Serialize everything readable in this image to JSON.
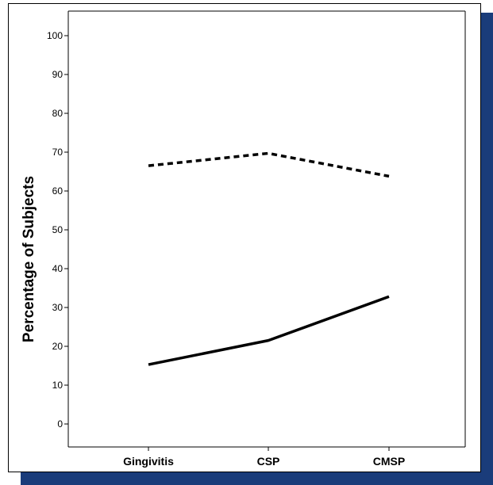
{
  "chart_data": {
    "type": "line",
    "title": "",
    "xlabel": "",
    "ylabel": "Percentage of Subjects",
    "categories": [
      "Gingivitis",
      "CSP",
      "CMSP"
    ],
    "ylim": [
      0,
      100
    ],
    "yticks": [
      0,
      10,
      20,
      30,
      40,
      50,
      60,
      70,
      80,
      90,
      100
    ],
    "grid": false,
    "legend": "none",
    "series": [
      {
        "style": "dashed",
        "color": "#000000",
        "values": [
          66.5,
          69.7,
          63.8
        ]
      },
      {
        "style": "solid",
        "color": "#000000",
        "values": [
          15.3,
          21.5,
          32.8
        ]
      }
    ]
  }
}
